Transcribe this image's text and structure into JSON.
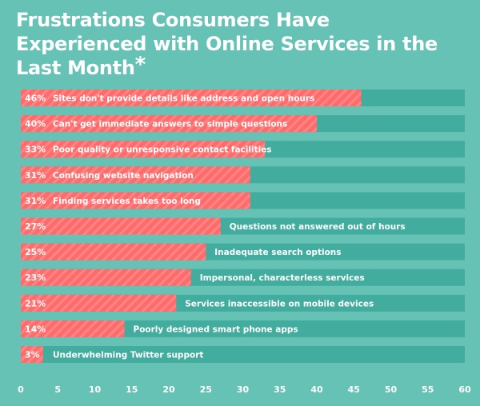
{
  "chart_data": {
    "type": "bar",
    "orientation": "horizontal",
    "title": "Frustrations Consumers Have Experienced with Online Services in the Last Month",
    "title_mark": "*",
    "categories": [
      "Sites don't provide details like address and open hours",
      "Can't get immediate answers to simple questions",
      "Poor quality or unresponsive contact facilities",
      "Confusing website navigation",
      "Finding services takes too long",
      "Questions not answered out of hours",
      "Inadequate search options",
      "Impersonal, characterless services",
      "Services inaccessible on mobile devices",
      "Poorly designed smart phone apps",
      "Underwhelming Twitter support"
    ],
    "values": [
      46,
      40,
      33,
      31,
      31,
      27,
      25,
      23,
      21,
      14,
      3
    ],
    "value_labels": [
      "46%",
      "40%",
      "33%",
      "31%",
      "31%",
      "27%",
      "25%",
      "23%",
      "21%",
      "14%",
      "3%"
    ],
    "xlim": [
      0,
      60
    ],
    "xticks": [
      0,
      5,
      10,
      15,
      20,
      25,
      30,
      35,
      40,
      45,
      50,
      55,
      60
    ],
    "xlabel": "",
    "ylabel": "",
    "grid": false,
    "legend": "none",
    "colors": {
      "background": "#66c2b5",
      "track": "#42ad9e",
      "bar": "#ff6b6b",
      "bar_stripe": "#ff8585",
      "text": "#ffffff"
    }
  }
}
